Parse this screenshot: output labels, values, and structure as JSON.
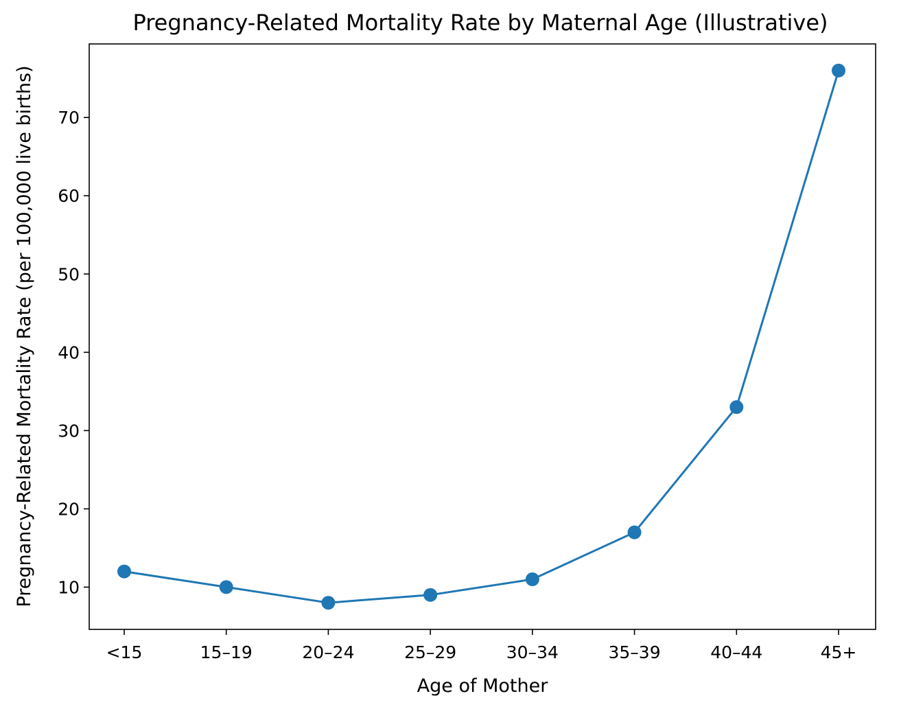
{
  "chart_data": {
    "type": "line",
    "title": "Pregnancy-Related Mortality Rate by Maternal Age (Illustrative)",
    "xlabel": "Age of Mother",
    "ylabel": "Pregnancy-Related Mortality Rate (per 100,000 live births)",
    "categories": [
      "<15",
      "15–19",
      "20–24",
      "25–29",
      "30–34",
      "35–39",
      "40–44",
      "45+"
    ],
    "series": [
      {
        "name": "Mortality rate",
        "values": [
          12,
          10,
          8,
          9,
          11,
          17,
          33,
          76
        ],
        "color": "#1f77b4"
      }
    ],
    "yticks": [
      10,
      20,
      30,
      40,
      50,
      60,
      70
    ],
    "ytick_labels": [
      "10",
      "20",
      "30",
      "40",
      "50",
      "60",
      "70"
    ],
    "ylim": [
      4.6,
      79.4
    ],
    "grid": false,
    "legend": "none"
  }
}
